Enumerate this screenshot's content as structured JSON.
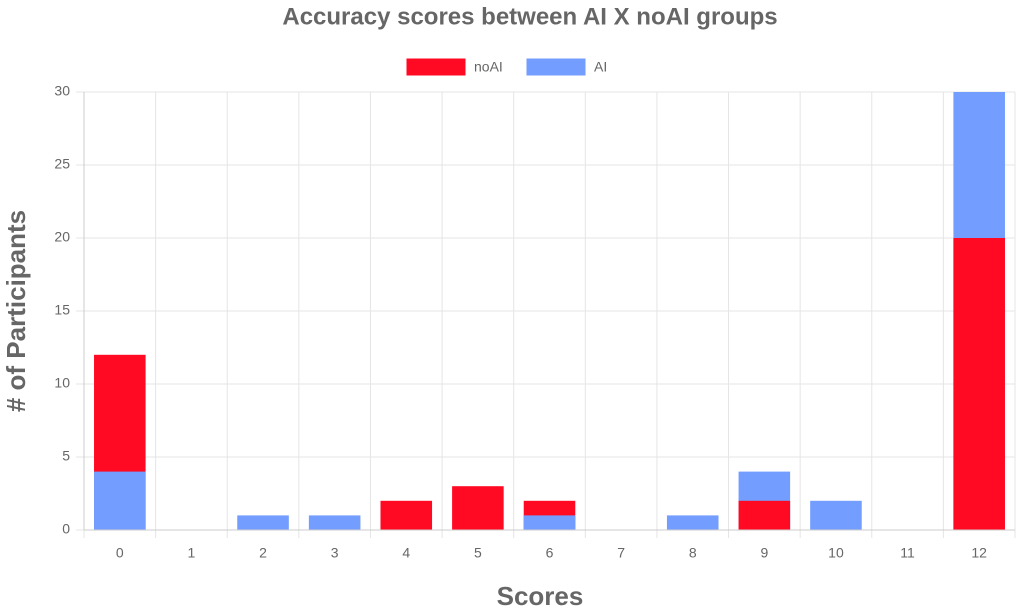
{
  "chart_data": {
    "type": "bar",
    "title": "Accuracy scores between AI X noAI groups",
    "x_label": "Scores",
    "y_label": "# of Participants",
    "categories": [
      "0",
      "1",
      "2",
      "3",
      "4",
      "5",
      "6",
      "7",
      "8",
      "9",
      "10",
      "11",
      "12"
    ],
    "series": [
      {
        "name": "noAI",
        "color": "#ff0a22",
        "values": [
          12,
          0,
          0,
          0,
          2,
          3,
          2,
          0,
          0,
          2,
          0,
          0,
          20
        ]
      },
      {
        "name": "AI",
        "color": "#739dff",
        "values": [
          4,
          0,
          1,
          1,
          0,
          0,
          1,
          0,
          1,
          4,
          2,
          0,
          30
        ]
      }
    ],
    "ylim": [
      0,
      30
    ],
    "yticks": [
      0,
      5,
      10,
      15,
      20,
      25,
      30
    ],
    "grid": true,
    "legend": "top"
  }
}
